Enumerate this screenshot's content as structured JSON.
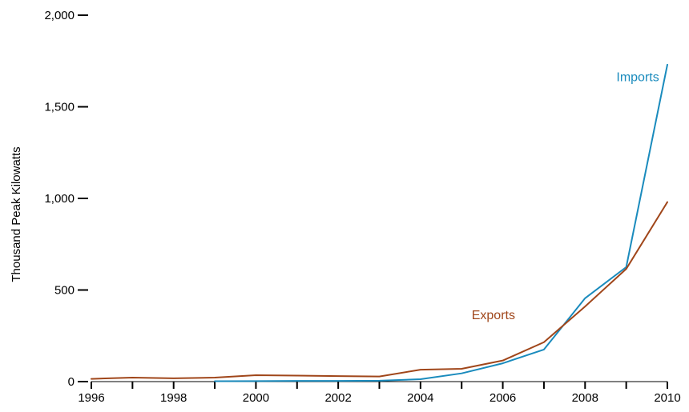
{
  "chart_data": {
    "type": "line",
    "title": "",
    "xlabel": "",
    "ylabel": "Thousand Peak Kilowatts",
    "xlim": [
      1996,
      2010
    ],
    "ylim": [
      0,
      2000
    ],
    "x_ticks": [
      1996,
      1998,
      2000,
      2002,
      2004,
      2006,
      2008,
      2010
    ],
    "x_tick_labels": [
      "1996",
      "1998",
      "2000",
      "2002",
      "2004",
      "2006",
      "2008",
      "2010"
    ],
    "y_ticks": [
      0,
      500,
      1000,
      1500,
      2000
    ],
    "y_tick_labels": [
      "0",
      "500",
      "1,000",
      "1,500",
      "2,000"
    ],
    "grid": false,
    "legend": "inline labels",
    "series": [
      {
        "name": "Imports",
        "color": "#1a8bbd",
        "x": [
          1999,
          2000,
          2001,
          2002,
          2003,
          2004,
          2005,
          2006,
          2007,
          2008,
          2009,
          2010
        ],
        "values": [
          2,
          3,
          4,
          4,
          5,
          13,
          45,
          100,
          175,
          455,
          625,
          1730
        ]
      },
      {
        "name": "Exports",
        "color": "#a0461a",
        "x": [
          1996,
          1997,
          1998,
          1999,
          2000,
          2001,
          2002,
          2003,
          2004,
          2005,
          2006,
          2007,
          2008,
          2009,
          2010
        ],
        "values": [
          15,
          22,
          18,
          22,
          35,
          33,
          30,
          28,
          65,
          70,
          115,
          215,
          410,
          615,
          980
        ]
      }
    ]
  }
}
